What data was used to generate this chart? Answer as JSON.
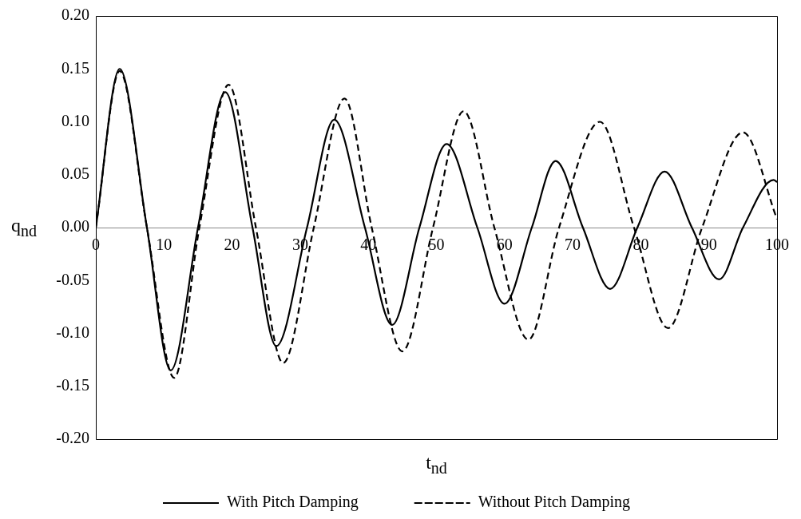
{
  "chart_data": {
    "type": "line",
    "xlabel": "t$_{nd}$",
    "ylabel": "q$_{nd}$",
    "xlim": [
      0,
      100
    ],
    "xticks": [
      0,
      10,
      20,
      30,
      40,
      50,
      60,
      70,
      80,
      90,
      100
    ],
    "ylim": [
      -0.2,
      0.2
    ],
    "yticks": [
      {
        "value": -0.2,
        "label": "-0.20"
      },
      -0.15,
      {
        "value": -0.1,
        "label": "-0.10"
      },
      -0.05,
      {
        "value": 0,
        "label": "0.00"
      },
      0.05,
      {
        "value": 0.1,
        "label": "0.10"
      },
      0.15,
      {
        "value": 0.2,
        "label": "0.20"
      }
    ],
    "grid": false,
    "legend": "bottom",
    "marker": "none",
    "series": [
      {
        "name": "With Pitch Damping",
        "color": "#000000",
        "line_style": "solid",
        "x": [
          0,
          3.5,
          7.5,
          11,
          15,
          19,
          23,
          26.5,
          31,
          35,
          39.5,
          43.5,
          47.5,
          51.5,
          56,
          60,
          64,
          67.5,
          71.5,
          75.5,
          79.5,
          83.5,
          87.5,
          91.5,
          95,
          99.5,
          100
        ],
        "values": [
          0,
          0.15,
          0,
          -0.135,
          0,
          0.128,
          0,
          -0.112,
          0,
          0.102,
          0,
          -0.092,
          0,
          0.079,
          0,
          -0.072,
          0,
          0.063,
          0,
          -0.058,
          0,
          0.053,
          0,
          -0.049,
          0,
          0.045,
          0.043
        ]
      },
      {
        "name": "Without Pitch Damping",
        "color": "#000000",
        "line_style": "dashed",
        "x": [
          0,
          3.5,
          7.5,
          11.5,
          15.2,
          19.5,
          23.5,
          27.5,
          32,
          36.5,
          40.5,
          45,
          49.5,
          54,
          58.5,
          63.5,
          68,
          74,
          79,
          84,
          89,
          95,
          100
        ],
        "values": [
          0,
          0.148,
          0,
          -0.142,
          0,
          0.135,
          0,
          -0.128,
          0,
          0.122,
          0,
          -0.117,
          0,
          0.11,
          0,
          -0.106,
          0,
          0.1,
          0,
          -0.095,
          0,
          0.09,
          0.008
        ]
      }
    ]
  }
}
